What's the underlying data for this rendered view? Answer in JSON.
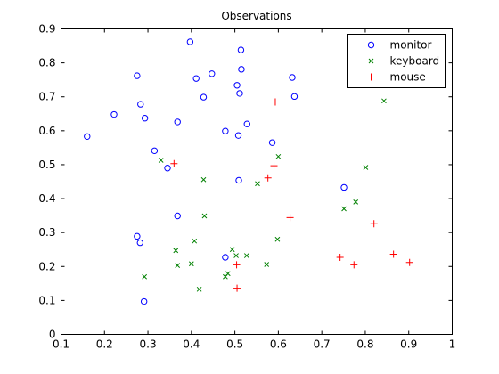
{
  "chart_data": {
    "type": "scatter",
    "title": "Observations",
    "xlabel": "",
    "ylabel": "",
    "xlim": [
      0.1,
      1.0
    ],
    "ylim": [
      0,
      0.9
    ],
    "x_ticks": [
      "0.1",
      "0.2",
      "0.3",
      "0.4",
      "0.5",
      "0.6",
      "0.7",
      "0.8",
      "0.9",
      "1"
    ],
    "y_ticks": [
      "0",
      "0.1",
      "0.2",
      "0.3",
      "0.4",
      "0.5",
      "0.6",
      "0.7",
      "0.8",
      "0.9"
    ],
    "grid": false,
    "legend_position": "top-right",
    "series": [
      {
        "name": "monitor",
        "marker": "circle",
        "color": "#0000ff",
        "x": [
          0.16,
          0.222,
          0.275,
          0.283,
          0.293,
          0.315,
          0.345,
          0.368,
          0.397,
          0.411,
          0.428,
          0.447,
          0.478,
          0.505,
          0.508,
          0.511,
          0.514,
          0.515,
          0.528,
          0.586,
          0.632,
          0.637,
          0.751,
          0.291,
          0.275,
          0.282,
          0.368,
          0.478,
          0.509
        ],
        "y": [
          0.583,
          0.648,
          0.762,
          0.678,
          0.637,
          0.541,
          0.49,
          0.626,
          0.862,
          0.754,
          0.699,
          0.768,
          0.599,
          0.734,
          0.586,
          0.71,
          0.838,
          0.781,
          0.62,
          0.565,
          0.757,
          0.701,
          0.433,
          0.097,
          0.289,
          0.27,
          0.349,
          0.227,
          0.454
        ]
      },
      {
        "name": "keyboard",
        "marker": "x",
        "color": "#008000",
        "x": [
          0.292,
          0.33,
          0.364,
          0.368,
          0.4,
          0.407,
          0.418,
          0.428,
          0.43,
          0.478,
          0.484,
          0.494,
          0.503,
          0.527,
          0.552,
          0.573,
          0.598,
          0.6,
          0.751,
          0.778,
          0.801,
          0.843
        ],
        "y": [
          0.17,
          0.513,
          0.247,
          0.203,
          0.208,
          0.275,
          0.133,
          0.456,
          0.349,
          0.17,
          0.179,
          0.25,
          0.232,
          0.232,
          0.444,
          0.206,
          0.28,
          0.524,
          0.37,
          0.39,
          0.492,
          0.688
        ]
      },
      {
        "name": "mouse",
        "marker": "plus",
        "color": "#ff0000",
        "x": [
          0.36,
          0.504,
          0.505,
          0.576,
          0.59,
          0.593,
          0.627,
          0.742,
          0.774,
          0.82,
          0.865,
          0.902
        ],
        "y": [
          0.503,
          0.205,
          0.136,
          0.461,
          0.497,
          0.685,
          0.344,
          0.227,
          0.205,
          0.326,
          0.236,
          0.212
        ]
      }
    ]
  }
}
